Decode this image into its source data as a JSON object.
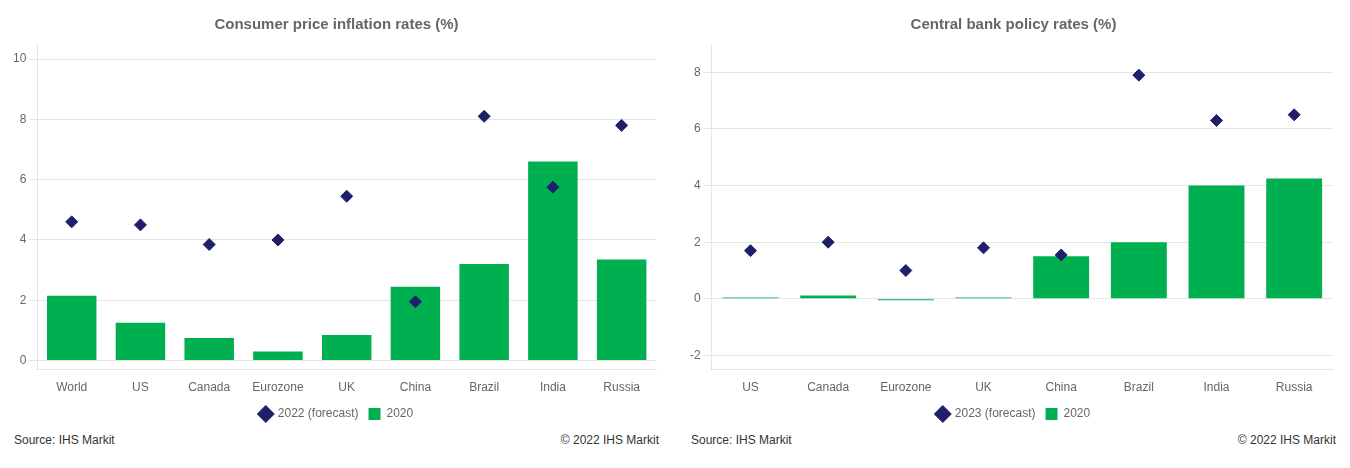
{
  "chart_data": [
    {
      "type": "bar",
      "title": "Consumer price inflation rates (%)",
      "categories": [
        "World",
        "US",
        "Canada",
        "Eurozone",
        "UK",
        "China",
        "Brazil",
        "India",
        "Russia"
      ],
      "series": [
        {
          "name": "2020",
          "type": "bar",
          "color": "#00b050",
          "values": [
            2.15,
            1.25,
            0.75,
            0.3,
            0.85,
            2.45,
            3.2,
            6.6,
            3.35
          ]
        },
        {
          "name": "2022 (forecast)",
          "type": "scatter",
          "marker": "diamond",
          "color": "#1f1f6b",
          "values": [
            4.6,
            4.5,
            3.85,
            4.0,
            5.45,
            1.95,
            8.1,
            5.75,
            7.8
          ]
        }
      ],
      "ylim": [
        -0.3,
        10.5
      ],
      "yticks": [
        0,
        2,
        4,
        6,
        8,
        10
      ],
      "grid": true,
      "legend": "bottom",
      "annotations": [
        "Source: IHS Markit",
        "© 2022 IHS Markit"
      ]
    },
    {
      "type": "bar",
      "title": "Central bank policy rates (%)",
      "categories": [
        "US",
        "Canada",
        "Eurozone",
        "UK",
        "China",
        "Brazil",
        "India",
        "Russia"
      ],
      "series": [
        {
          "name": "2020",
          "type": "bar",
          "color": "#00b050",
          "values": [
            0.05,
            0.12,
            -0.05,
            0.05,
            1.5,
            2.0,
            4.0,
            4.25
          ]
        },
        {
          "name": "2023 (forecast)",
          "type": "scatter",
          "marker": "diamond",
          "color": "#1f1f6b",
          "values": [
            1.7,
            2.0,
            1.0,
            1.8,
            1.55,
            7.9,
            6.3,
            6.5
          ]
        }
      ],
      "ylim": [
        -2.5,
        9.0
      ],
      "yticks": [
        -2,
        0,
        2,
        4,
        6,
        8
      ],
      "grid": true,
      "legend": "bottom",
      "annotations": [
        "Source: IHS Markit",
        "© 2022 IHS Markit"
      ]
    }
  ]
}
